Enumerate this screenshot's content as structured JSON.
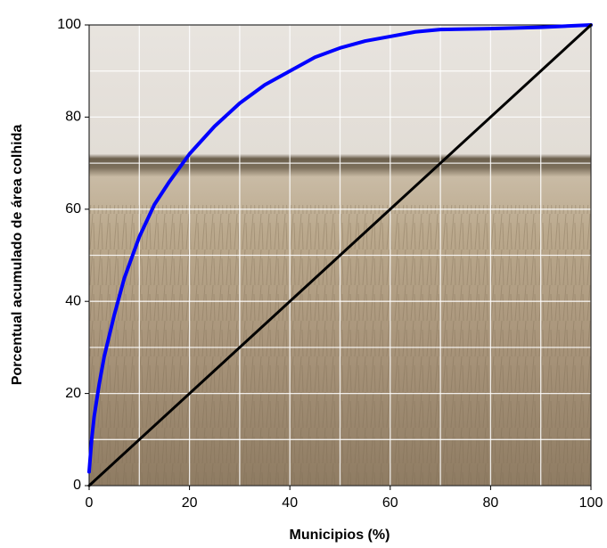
{
  "chart_data": {
    "type": "line",
    "x_label": "Municipios (%)",
    "y_label": "Porcentual acumulado de área colhida",
    "xlim": [
      0,
      100
    ],
    "ylim": [
      0,
      100
    ],
    "xticks": [
      0,
      20,
      40,
      60,
      80,
      100
    ],
    "yticks": [
      0,
      20,
      40,
      60,
      80,
      100
    ],
    "xminor": [
      10,
      30,
      50,
      70,
      90
    ],
    "yminor": [
      10,
      30,
      50,
      70,
      90
    ],
    "grid": true,
    "series": [
      {
        "color": "#0000ff",
        "x": [
          0,
          0.5,
          1,
          2,
          3,
          5,
          7,
          10,
          13,
          16,
          20,
          25,
          30,
          35,
          40,
          45,
          50,
          55,
          60,
          65,
          70,
          80,
          90,
          100
        ],
        "values": [
          3,
          10,
          15,
          22,
          28,
          37,
          45,
          54,
          61,
          66,
          72,
          78,
          83,
          87,
          90,
          93,
          95,
          96.5,
          97.5,
          98.5,
          99,
          99.2,
          99.5,
          100
        ]
      },
      {
        "color": "#000000",
        "x": [
          0,
          100
        ],
        "values": [
          0,
          100
        ]
      }
    ]
  }
}
